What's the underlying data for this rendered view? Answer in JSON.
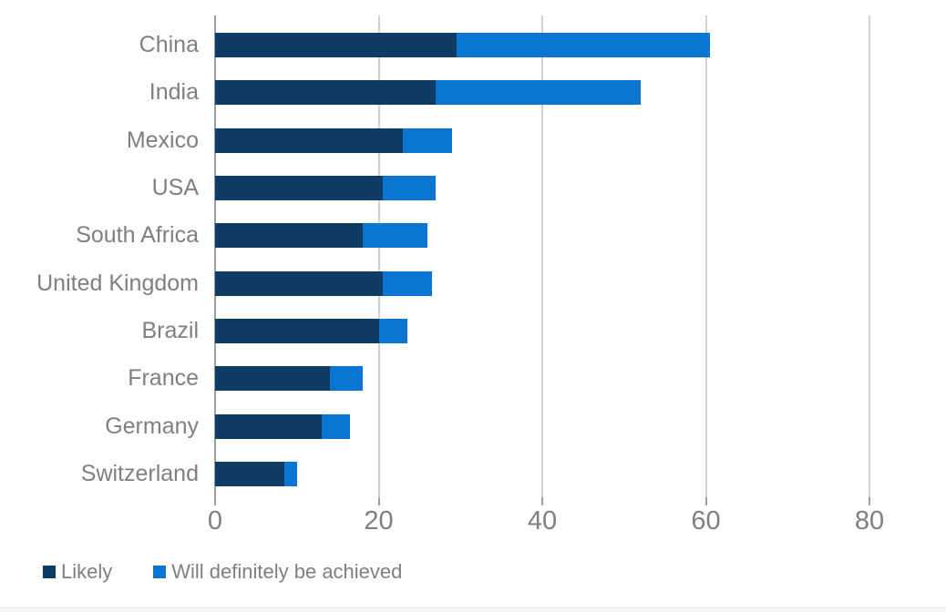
{
  "chart_data": {
    "type": "bar",
    "orientation": "horizontal",
    "stacked": true,
    "title": "",
    "xlabel": "",
    "ylabel": "",
    "categories": [
      "China",
      "India",
      "Mexico",
      "USA",
      "South Africa",
      "United Kingdom",
      "Brazil",
      "France",
      "Germany",
      "Switzerland"
    ],
    "series": [
      {
        "name": "Likely",
        "color": "#0e3c64",
        "values": [
          29.5,
          27,
          23,
          20.5,
          18,
          20.5,
          20,
          14,
          13,
          8.5
        ]
      },
      {
        "name": "Will definitely be achieved",
        "color": "#0a76d2",
        "values": [
          31,
          25,
          6,
          6.5,
          8,
          6,
          3.5,
          4,
          3.5,
          1.5
        ]
      }
    ],
    "totals": [
      60.5,
      52,
      29,
      27,
      26,
      26.5,
      23.5,
      18,
      16.5,
      10
    ],
    "x_axis": {
      "min": 0,
      "max": 80,
      "ticks": [
        0,
        20,
        40,
        60,
        80
      ]
    },
    "grid": "vertical-gridlines-on",
    "legend_position": "bottom-left"
  },
  "colors": {
    "background": "#ffffff",
    "bar_likely": "#0e3c64",
    "bar_definitely": "#0a76d2",
    "axis_line": "#9e9e9e",
    "gridline": "#d2d2d2",
    "text_gray": "#7f7f7f"
  }
}
